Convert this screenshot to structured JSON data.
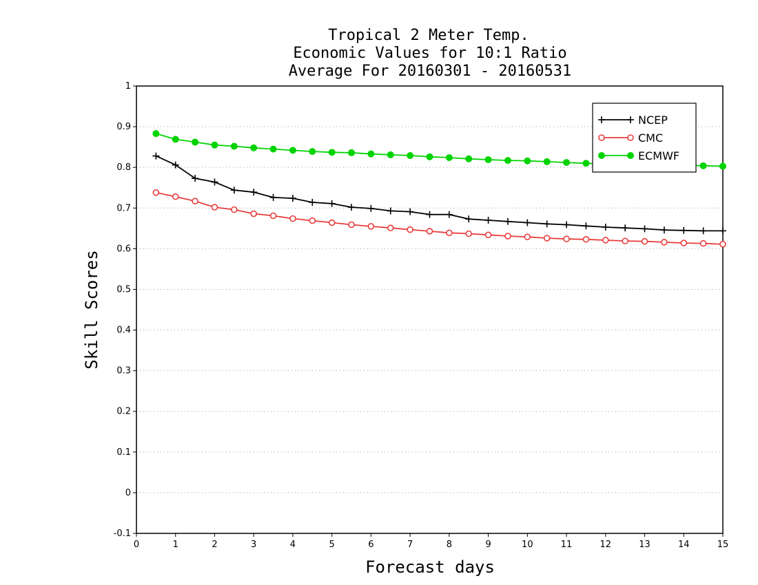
{
  "chart_data": {
    "type": "line",
    "title_lines": [
      "Tropical 2 Meter Temp.",
      "Economic Values for 10:1 Ratio",
      "Average For 20160301 - 20160531"
    ],
    "xlabel": "Forecast days",
    "ylabel": "Skill Scores",
    "xlim": [
      0,
      15
    ],
    "ylim": [
      -0.1,
      1
    ],
    "x_ticks": [
      0,
      1,
      2,
      3,
      4,
      5,
      6,
      7,
      8,
      9,
      10,
      11,
      12,
      13,
      14,
      15
    ],
    "y_ticks": [
      -0.1,
      0,
      0.1,
      0.2,
      0.3,
      0.4,
      0.5,
      0.6,
      0.7,
      0.8,
      0.9,
      1
    ],
    "y_tick_labels": [
      "-0.1",
      "0",
      "0.1",
      "0.2",
      "0.3",
      "0.4",
      "0.5",
      "0.6",
      "0.7",
      "0.8",
      "0.9",
      "1"
    ],
    "grid": "horizontal dotted",
    "legend_position": "top-right",
    "x": [
      0.5,
      1,
      1.5,
      2,
      2.5,
      3,
      3.5,
      4,
      4.5,
      5,
      5.5,
      6,
      6.5,
      7,
      7.5,
      8,
      8.5,
      9,
      9.5,
      10,
      10.5,
      11,
      11.5,
      12,
      12.5,
      13,
      13.5,
      14,
      14.5,
      15
    ],
    "series": [
      {
        "name": "NCEP",
        "color": "#000000",
        "marker": "plus",
        "values": [
          0.828,
          0.806,
          0.773,
          0.764,
          0.744,
          0.739,
          0.726,
          0.724,
          0.714,
          0.711,
          0.702,
          0.699,
          0.693,
          0.691,
          0.684,
          0.684,
          0.673,
          0.67,
          0.667,
          0.664,
          0.661,
          0.659,
          0.656,
          0.653,
          0.651,
          0.649,
          0.646,
          0.645,
          0.644,
          0.644
        ]
      },
      {
        "name": "CMC",
        "color": "#e83c3c",
        "marker": "open-circle",
        "values": [
          0.738,
          0.728,
          0.717,
          0.702,
          0.696,
          0.686,
          0.681,
          0.674,
          0.669,
          0.664,
          0.659,
          0.655,
          0.651,
          0.647,
          0.643,
          0.639,
          0.637,
          0.634,
          0.631,
          0.629,
          0.626,
          0.624,
          0.623,
          0.621,
          0.619,
          0.618,
          0.616,
          0.614,
          0.613,
          0.611
        ]
      },
      {
        "name": "ECMWF",
        "color": "#00d400",
        "marker": "filled-circle",
        "values": [
          0.883,
          0.869,
          0.862,
          0.855,
          0.852,
          0.848,
          0.845,
          0.842,
          0.839,
          0.837,
          0.836,
          0.833,
          0.831,
          0.829,
          0.826,
          0.824,
          0.821,
          0.819,
          0.817,
          0.816,
          0.814,
          0.812,
          0.81,
          0.809,
          0.808,
          0.807,
          0.806,
          0.805,
          0.804,
          0.803
        ]
      }
    ]
  }
}
